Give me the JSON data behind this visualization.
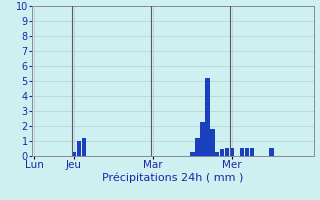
{
  "xlabel": "Précipitations 24h ( mm )",
  "ylim": [
    0,
    10
  ],
  "yticks": [
    0,
    1,
    2,
    3,
    4,
    5,
    6,
    7,
    8,
    9,
    10
  ],
  "background_color": "#cff0f0",
  "bar_color": "#1a3fbf",
  "grid_color": "#bbcccc",
  "values": [
    0,
    0,
    0,
    0,
    0,
    0,
    0,
    0,
    0.3,
    1.0,
    1.2,
    0,
    0,
    0,
    0,
    0,
    0,
    0,
    0,
    0,
    0,
    0,
    0,
    0,
    0,
    0,
    0,
    0,
    0,
    0,
    0,
    0,
    0.25,
    1.2,
    2.3,
    5.2,
    1.8,
    0.3,
    0.5,
    0.55,
    0.55,
    0,
    0.55,
    0.55,
    0.55,
    0,
    0,
    0,
    0.55,
    0,
    0,
    0,
    0,
    0,
    0,
    0,
    0
  ],
  "day_labels": [
    "Lun",
    "Jeu",
    "Mar",
    "Mer"
  ],
  "day_positions": [
    0,
    8,
    24,
    40
  ],
  "vline_positions": [
    8,
    24,
    40
  ],
  "vline_color": "#555577",
  "label_color": "#2222aa",
  "ytick_fontsize": 7,
  "xtick_fontsize": 7.5,
  "xlabel_fontsize": 8
}
